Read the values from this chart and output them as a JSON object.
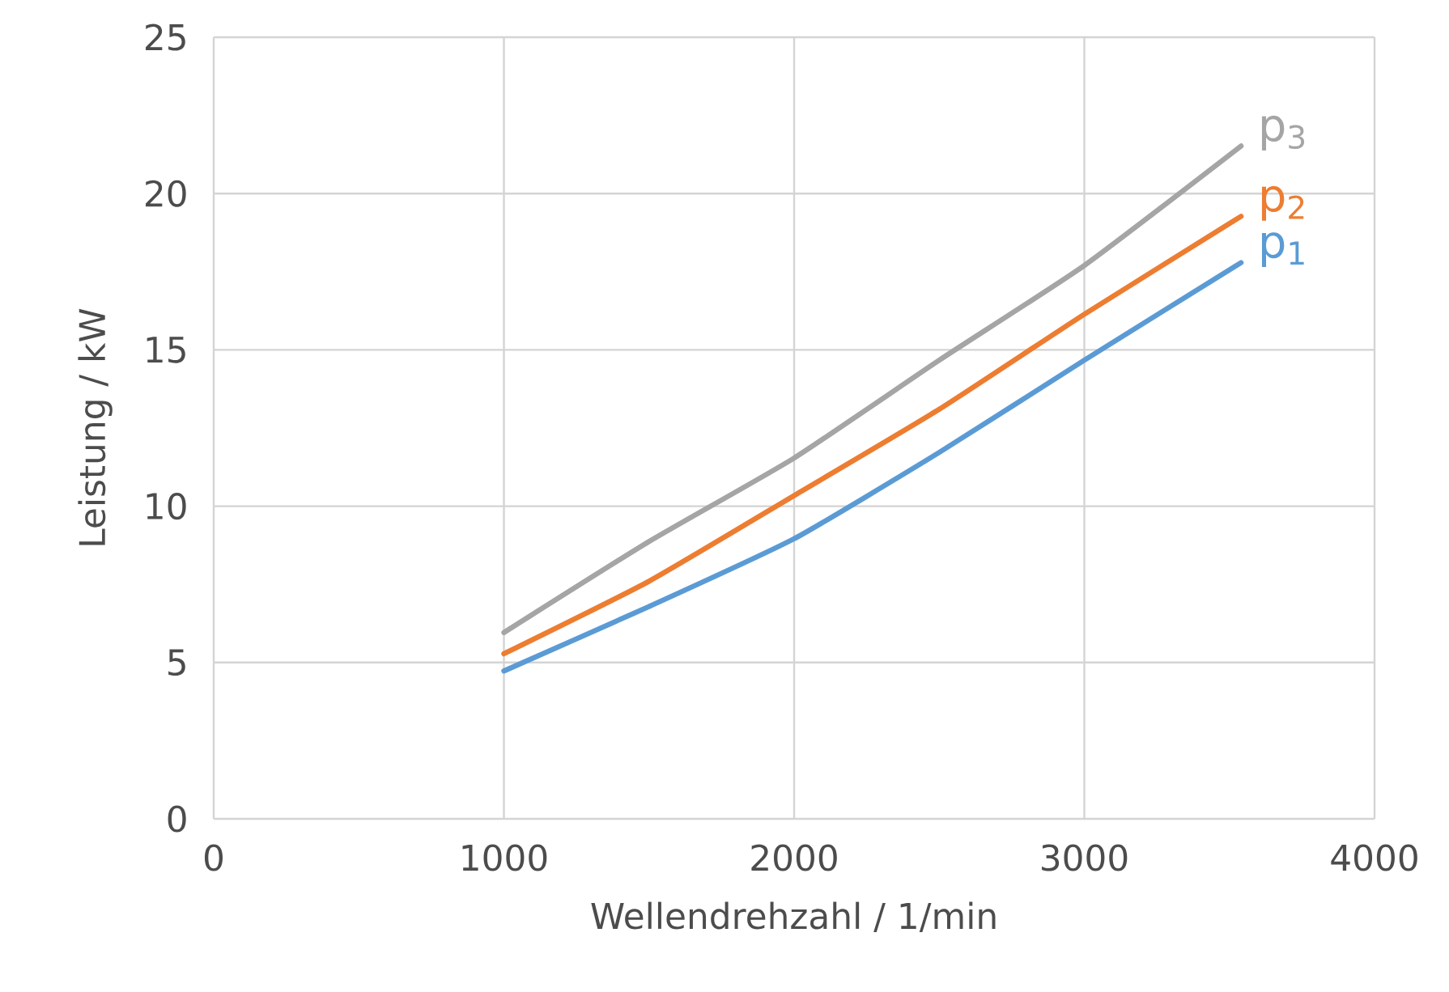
{
  "chart_data": {
    "type": "line",
    "xlabel": "Wellendrehzahl / 1/min",
    "ylabel": "Leistung / kW",
    "x": [
      1000,
      1500,
      2000,
      2500,
      3000,
      3540
    ],
    "series": [
      {
        "name": "p$_{1}$",
        "color": "#5b9bd5",
        "values": [
          4.73,
          6.79,
          8.96,
          11.72,
          14.67,
          17.79
        ]
      },
      {
        "name": "p$_{2}$",
        "color": "#ed7d31",
        "values": [
          5.28,
          7.6,
          10.34,
          13.1,
          16.14,
          19.27
        ]
      },
      {
        "name": "p$_{3}$",
        "color": "#a5a5a5",
        "values": [
          5.96,
          8.87,
          11.54,
          14.67,
          17.7,
          21.52
        ]
      }
    ],
    "xlim": [
      0,
      4000
    ],
    "ylim": [
      0,
      25
    ],
    "xticks": [
      0,
      1000,
      2000,
      3000,
      4000
    ],
    "yticks": [
      0,
      5,
      10,
      15,
      20,
      25
    ],
    "grid": true,
    "legend": false,
    "marker": "none",
    "line_style": "solid"
  }
}
